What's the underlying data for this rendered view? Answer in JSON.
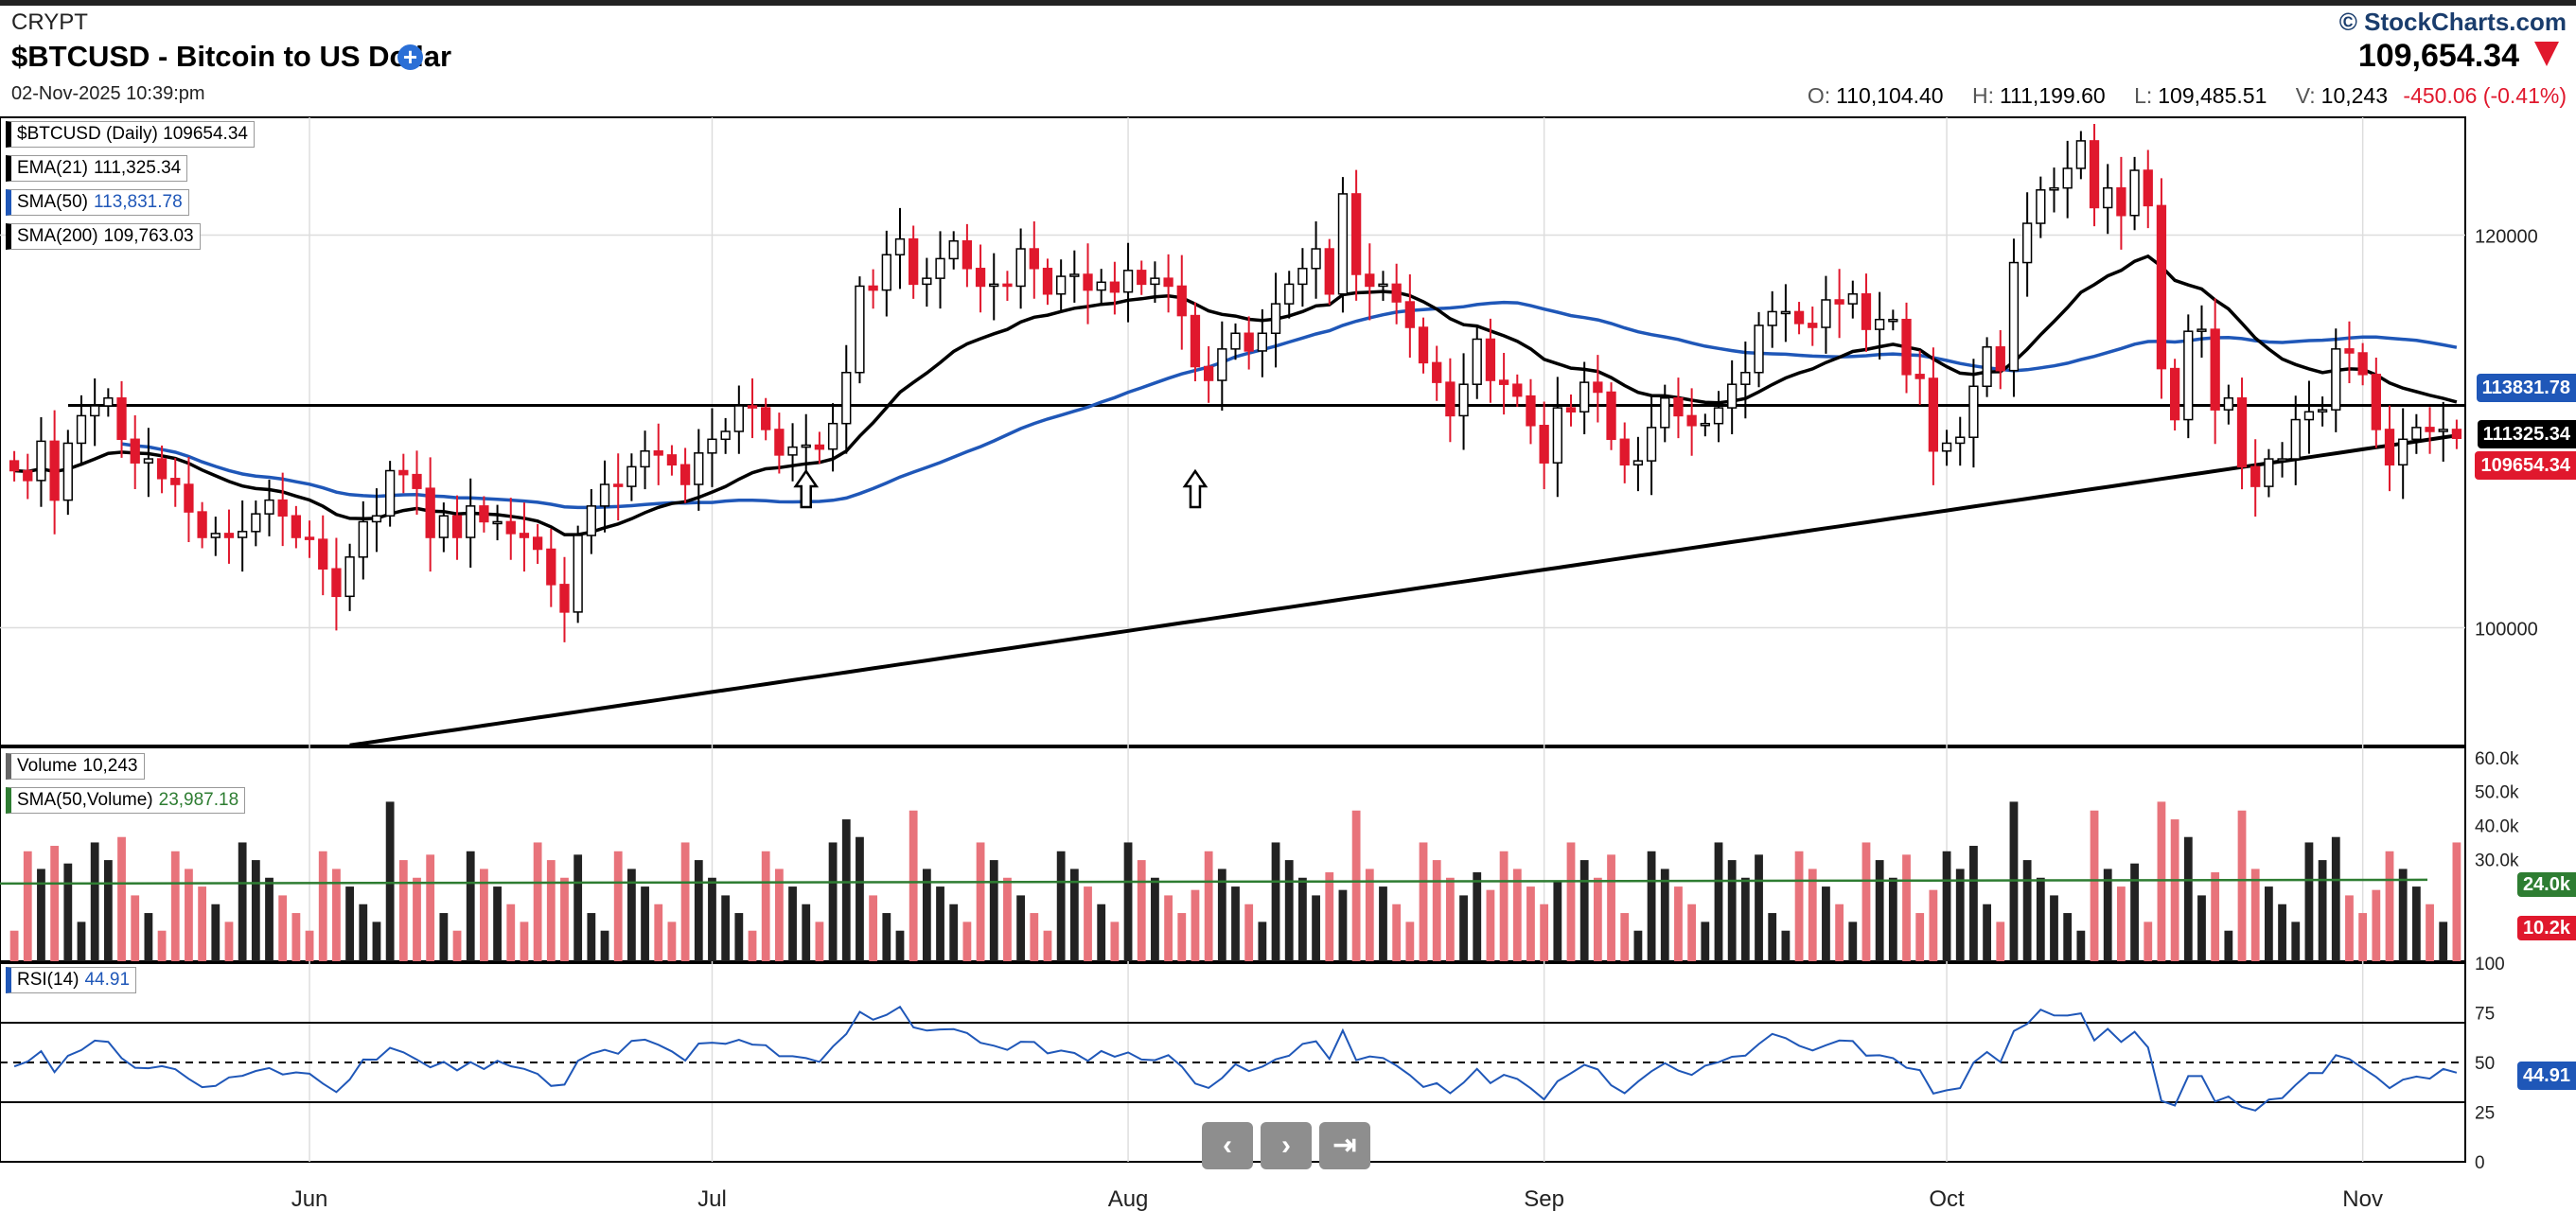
{
  "header": {
    "exchange": "CRYPT",
    "symbol_title": "$BTCUSD - Bitcoin to US Dollar",
    "add_icon": "plus-circle-icon",
    "datetime": "02-Nov-2025 10:39:pm",
    "copyright": "© StockCharts.com",
    "last_price": "109,654.34",
    "ohlc": {
      "open_label": "O:",
      "open": "110,104.40",
      "high_label": "H:",
      "high": "111,199.60",
      "low_label": "L:",
      "low": "109,485.51",
      "volume_label": "V:",
      "volume": "10,243",
      "change": "-450.06 (-0.41%)"
    }
  },
  "legends": {
    "price": {
      "label": "$BTCUSD (Daily)",
      "value": "109654.34"
    },
    "ema21": {
      "label": "EMA(21)",
      "value": "111,325.34"
    },
    "sma50": {
      "label": "SMA(50)",
      "value": "113,831.78"
    },
    "sma200": {
      "label": "SMA(200)",
      "value": "109,763.03"
    },
    "volume": {
      "label": "Volume",
      "value": "10,243"
    },
    "vol_sma": {
      "label": "SMA(50,Volume)",
      "value": "23,987.18"
    },
    "rsi": {
      "label": "RSI(14)",
      "value": "44.91"
    }
  },
  "tags": {
    "sma50": "113831.78",
    "ema21": "111325.34",
    "price": "109654.34",
    "vol_sma": "24.0k",
    "vol_last": "10.2k",
    "rsi": "44.91"
  },
  "nav": {
    "prev": "‹",
    "next": "›",
    "end": "⇥"
  },
  "colors": {
    "up": "#ffffff",
    "down": "#e0182d",
    "sma50": "#1f57b8",
    "ema21": "#000000",
    "vol_sma": "#2e7d32",
    "rsi": "#1f57b8"
  },
  "chart_data": {
    "type": "candlestick",
    "price_axis_ticks": [
      "120000",
      "100000"
    ],
    "price_ylim": [
      94000,
      126000
    ],
    "month_labels": [
      "Jun",
      "Jul",
      "Aug",
      "Sep",
      "Oct",
      "Nov"
    ],
    "horizontal_line": 111325,
    "volume_axis_ticks": [
      "60.0k",
      "50.0k",
      "40.0k",
      "30.0k"
    ],
    "volume_ylim": [
      0,
      63000
    ],
    "rsi_axis_ticks": [
      "100",
      "75",
      "50",
      "25",
      "0"
    ],
    "rsi_levels": [
      70,
      50,
      30
    ],
    "close": [
      108000,
      107500,
      109500,
      106500,
      109400,
      110800,
      111300,
      111700,
      109600,
      108400,
      108600,
      107600,
      107300,
      105900,
      104600,
      104800,
      104600,
      104900,
      105800,
      106500,
      105700,
      104600,
      104500,
      103000,
      101600,
      103600,
      105400,
      105700,
      108000,
      107800,
      107100,
      104600,
      105700,
      104600,
      106200,
      105400,
      105400,
      104800,
      104600,
      104000,
      102200,
      100800,
      104700,
      106200,
      107300,
      107200,
      108200,
      109000,
      108800,
      108300,
      107300,
      108900,
      109600,
      110000,
      111300,
      111200,
      110100,
      108800,
      109200,
      109300,
      109100,
      110400,
      113000,
      117400,
      117200,
      119000,
      119800,
      117500,
      117800,
      118800,
      119700,
      118300,
      117400,
      117500,
      117400,
      119300,
      118300,
      117000,
      117900,
      118000,
      117200,
      117600,
      117100,
      118200,
      117500,
      117800,
      117400,
      115900,
      113300,
      112600,
      114200,
      115000,
      114100,
      115000,
      116500,
      117500,
      118300,
      119300,
      117000,
      122100,
      118000,
      117400,
      117500,
      116600,
      115300,
      113500,
      112500,
      110800,
      112400,
      114700,
      112600,
      112400,
      111800,
      110300,
      108400,
      111200,
      111000,
      112500,
      112000,
      109600,
      108300,
      108500,
      110200,
      111700,
      110800,
      110300,
      110400,
      111200,
      112400,
      113000,
      115400,
      116100,
      116100,
      115500,
      115300,
      116700,
      116500,
      117000,
      115200,
      115700,
      115700,
      112900,
      112700,
      109000,
      109400,
      109700,
      112300,
      114300,
      113100,
      118600,
      120600,
      122300,
      122400,
      123400,
      124800,
      121400,
      122400,
      121000,
      123300,
      121500,
      113200,
      110600,
      115100,
      115200,
      111100,
      111700,
      108200,
      107200,
      108600,
      108600,
      110600,
      111000,
      111100,
      114200,
      114000,
      112900,
      110100,
      108300,
      109600,
      110200,
      110000,
      110100,
      109650
    ]
  }
}
